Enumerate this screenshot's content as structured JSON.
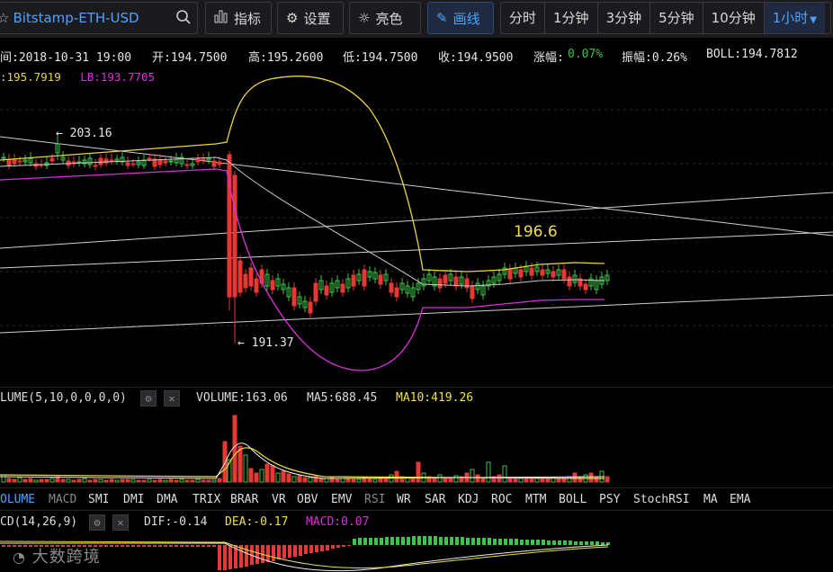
{
  "toolbar": {
    "symbol": "Bitstamp-ETH-USD",
    "indicators_label": "指标",
    "settings_label": "设置",
    "brightness_label": "亮色",
    "draw_label": "画线",
    "intervals": [
      "分时",
      "1分钟",
      "3分钟",
      "5分钟",
      "10分钟",
      "1小时"
    ],
    "selected_interval": "1小时"
  },
  "info_bar": {
    "time": "间:2018-10-31 19:00",
    "open": "开:194.7500",
    "high": "高:195.2600",
    "low": "低:194.7500",
    "close": "收:194.9500",
    "change_label": "涨幅:",
    "change_value": "0.07%",
    "amplitude": "振幅:0.26%",
    "boll": "BOLL:194.7812"
  },
  "bands": {
    "ub": ":195.7919",
    "lb": "LB:193.7705"
  },
  "annotations": {
    "high_marker": "← 203.16",
    "low_marker": "← 191.37",
    "callout": "196.6"
  },
  "volume_panel": {
    "title": "LUME(5,10,0,0,0,0)",
    "volume": "VOLUME:163.06",
    "ma5": "MA5:688.45",
    "ma10": "MA10:419.26"
  },
  "indicator_tabs": [
    "OLUME",
    "MACD",
    "SMI",
    "DMI",
    "DMA",
    "TRIX",
    "BRAR",
    "VR",
    "OBV",
    "EMV",
    "RSI",
    "WR",
    "SAR",
    "KDJ",
    "ROC",
    "MTM",
    "BOLL",
    "PSY",
    "StochRSI",
    "MA",
    "EMA"
  ],
  "active_indicator": "OLUME",
  "macd_panel": {
    "title": "CD(14,26,9)",
    "dif": "DIF:-0.14",
    "dea": "DEA:-0.17",
    "macd": "MACD:0.07"
  },
  "watermark": "大数跨境",
  "colors": {
    "up": "#3ec24a",
    "down": "#e53935",
    "ub": "#e8d53a",
    "lb": "#d930d9",
    "mid": "#cccccc",
    "accent": "#4da3ff"
  }
}
